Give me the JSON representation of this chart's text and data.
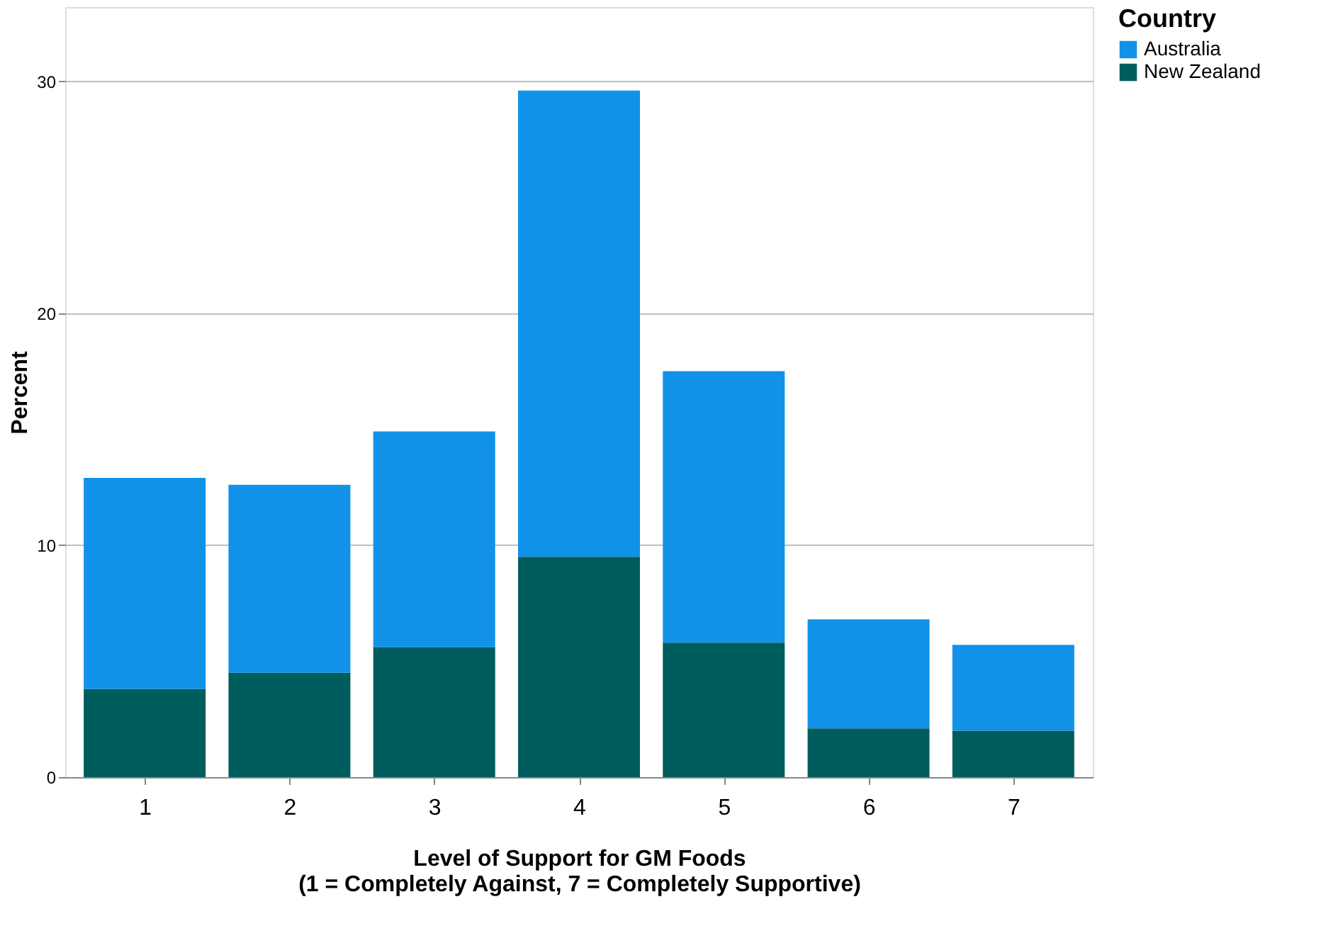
{
  "chart_data": {
    "type": "bar",
    "stacked": true,
    "xlabel": "Level of Support for GM Foods\n(1 = Completely Against, 7 = Completely Supportive)",
    "ylabel": "Percent",
    "legend_title": "Country",
    "categories": [
      "1",
      "2",
      "3",
      "4",
      "5",
      "6",
      "7"
    ],
    "series": [
      {
        "name": "New Zealand",
        "color": "#005d5d",
        "values": [
          3.8,
          4.5,
          5.6,
          9.5,
          5.8,
          2.1,
          2.0
        ]
      },
      {
        "name": "Australia",
        "color": "#1192e8",
        "values": [
          9.1,
          8.1,
          9.3,
          20.1,
          11.7,
          4.7,
          3.7
        ]
      }
    ],
    "ylim": [
      0,
      33.2
    ],
    "yticks": [
      0,
      10,
      20,
      30
    ],
    "grid": "y",
    "legend": "top right"
  }
}
